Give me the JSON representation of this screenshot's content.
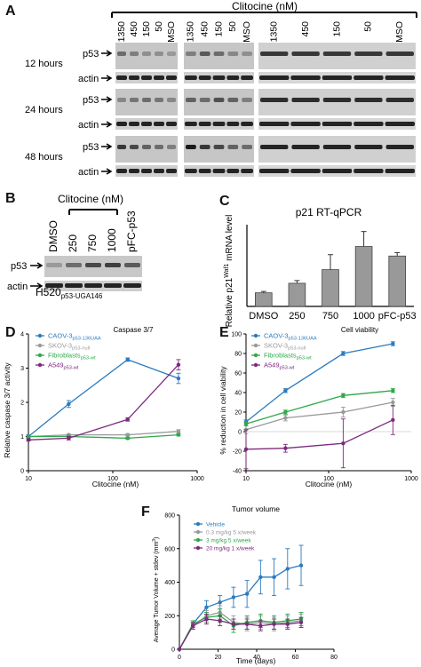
{
  "panelA": {
    "letter": "A",
    "unit": "Clitocine (nM)",
    "lanes": [
      "1350",
      "450",
      "150",
      "50",
      "DMSO",
      "1350",
      "450",
      "150",
      "50",
      "DMSO",
      "1350",
      "450",
      "150",
      "50",
      "DMSO"
    ],
    "rows": [
      {
        "time": "12 hours",
        "blots": [
          "p53",
          "actin"
        ]
      },
      {
        "time": "24 hours",
        "blots": [
          "p53",
          "actin"
        ]
      },
      {
        "time": "48 hours",
        "blots": [
          "p53",
          "actin"
        ]
      }
    ]
  },
  "panelB": {
    "letter": "B",
    "title": "Clitocine (nM)",
    "lanes": [
      "DMSO",
      "250",
      "750",
      "1000",
      "pFC-p53"
    ],
    "blots": [
      "p53",
      "actin"
    ],
    "cell_line": "H520",
    "cell_sub": "p53-UGA146"
  },
  "chart_data": [
    {
      "id": "C",
      "type": "bar",
      "title": "p21 RT-qPCR",
      "ylabel_pre": "Relative p21",
      "ylabel_sup": "Waf1",
      "ylabel_post": " mRNA level",
      "categories": [
        "DMSO",
        "250",
        "750",
        "1000",
        "pFC-p53"
      ],
      "values": [
        1.0,
        1.7,
        2.7,
        4.4,
        3.7
      ],
      "errors": [
        0.1,
        0.2,
        1.1,
        1.1,
        0.25
      ],
      "ylim": [
        0,
        6
      ],
      "bar_color": "#999999"
    },
    {
      "id": "D",
      "type": "line",
      "title": "Caspase 3/7",
      "xlabel": "Clitocine (nM)",
      "ylabel": "Relative caspase 3/7 activity",
      "xscale": "log",
      "xlim": [
        10,
        1000
      ],
      "ylim": [
        0,
        4
      ],
      "xticks": [
        10,
        100,
        1000
      ],
      "yticks": [
        0,
        1,
        2,
        3,
        4
      ],
      "series": [
        {
          "name": "CAOV-3",
          "sub": "p53-136UAA",
          "color": "#2b7bbf",
          "x": [
            10,
            30,
            150,
            600
          ],
          "y": [
            1.0,
            1.95,
            3.25,
            2.7
          ],
          "err": [
            0.05,
            0.1,
            0.05,
            0.15
          ]
        },
        {
          "name": "SKOV-3",
          "sub": "p53-null",
          "color": "#999999",
          "x": [
            10,
            30,
            150,
            600
          ],
          "y": [
            1.0,
            1.05,
            1.05,
            1.15
          ],
          "err": [
            0.03,
            0.03,
            0.03,
            0.05
          ]
        },
        {
          "name": "Fibroblasts",
          "sub": "p53-wt",
          "color": "#2ea84a",
          "x": [
            10,
            30,
            150,
            600
          ],
          "y": [
            1.0,
            1.0,
            0.95,
            1.05
          ],
          "err": [
            0.03,
            0.03,
            0.03,
            0.03
          ]
        },
        {
          "name": "A549",
          "sub": "p53-wt",
          "color": "#7d2a7d",
          "x": [
            10,
            30,
            150,
            600
          ],
          "y": [
            0.9,
            0.95,
            1.5,
            3.1
          ],
          "err": [
            0.03,
            0.05,
            0.05,
            0.15
          ]
        }
      ]
    },
    {
      "id": "E",
      "type": "line",
      "title": "Cell viability",
      "xlabel": "Clitocine (nM)",
      "ylabel": "% reduction in cell viability",
      "xscale": "log",
      "xlim": [
        10,
        1000
      ],
      "ylim": [
        -40,
        100
      ],
      "xticks": [
        10,
        100,
        1000
      ],
      "yticks": [
        -40,
        -20,
        0,
        20,
        40,
        60,
        80,
        100
      ],
      "series": [
        {
          "name": "CAOV-3",
          "sub": "p53-136UAA",
          "color": "#2b7bbf",
          "x": [
            10,
            30,
            150,
            600
          ],
          "y": [
            10,
            42,
            80,
            90
          ],
          "err": [
            2,
            2,
            2,
            2
          ]
        },
        {
          "name": "SKOV-3",
          "sub": "p53-null",
          "color": "#999999",
          "x": [
            10,
            30,
            150,
            600
          ],
          "y": [
            2,
            14,
            20,
            30
          ],
          "err": [
            4,
            3,
            5,
            4
          ]
        },
        {
          "name": "Fibroblasts",
          "sub": "p53-wt",
          "color": "#2ea84a",
          "x": [
            10,
            30,
            150,
            600
          ],
          "y": [
            8,
            20,
            37,
            42
          ],
          "err": [
            2,
            2,
            2,
            2
          ]
        },
        {
          "name": "A549",
          "sub": "p53-wt",
          "color": "#7d2a7d",
          "x": [
            10,
            30,
            150,
            600
          ],
          "y": [
            -18,
            -17,
            -12,
            12
          ],
          "err": [
            20,
            4,
            25,
            15
          ]
        }
      ]
    },
    {
      "id": "F",
      "type": "line",
      "title": "Tumor volume",
      "xlabel": "Time (days)",
      "ylabel_pre": "Average Tumor Volume + stdev (mm",
      "ylabel_sup": "3",
      "ylabel_post": ")",
      "xlim": [
        0,
        80
      ],
      "ylim": [
        0,
        800
      ],
      "xticks": [
        0,
        20,
        40,
        60,
        80
      ],
      "yticks": [
        0,
        200,
        400,
        600,
        800
      ],
      "series": [
        {
          "name": "Vehicle",
          "color": "#2b7bbf",
          "x": [
            0,
            7,
            14,
            21,
            28,
            35,
            42,
            49,
            56,
            63
          ],
          "y": [
            0,
            150,
            250,
            280,
            310,
            330,
            430,
            430,
            480,
            500
          ],
          "err": [
            0,
            20,
            40,
            40,
            60,
            80,
            100,
            110,
            120,
            120
          ]
        },
        {
          "name": "0.3 mg/kg 5 x/week",
          "color": "#999999",
          "x": [
            0,
            7,
            14,
            21,
            28,
            35,
            42,
            49,
            56,
            63
          ],
          "y": [
            0,
            140,
            200,
            220,
            160,
            150,
            160,
            150,
            160,
            170
          ],
          "err": [
            0,
            20,
            30,
            40,
            40,
            40,
            40,
            40,
            40,
            40
          ]
        },
        {
          "name": "3 mg/kg 5 x/week",
          "color": "#2ea84a",
          "x": [
            0,
            7,
            14,
            21,
            28,
            35,
            42,
            49,
            56,
            63
          ],
          "y": [
            0,
            150,
            190,
            200,
            140,
            160,
            170,
            160,
            170,
            180
          ],
          "err": [
            0,
            20,
            30,
            40,
            40,
            40,
            40,
            40,
            40,
            40
          ]
        },
        {
          "name": "20 mg/kg 1 x/week",
          "color": "#7d2a7d",
          "x": [
            0,
            7,
            14,
            21,
            28,
            35,
            42,
            49,
            56,
            63
          ],
          "y": [
            0,
            140,
            180,
            170,
            150,
            150,
            140,
            150,
            150,
            160
          ],
          "err": [
            0,
            20,
            30,
            30,
            30,
            30,
            30,
            30,
            30,
            30
          ]
        }
      ]
    }
  ]
}
